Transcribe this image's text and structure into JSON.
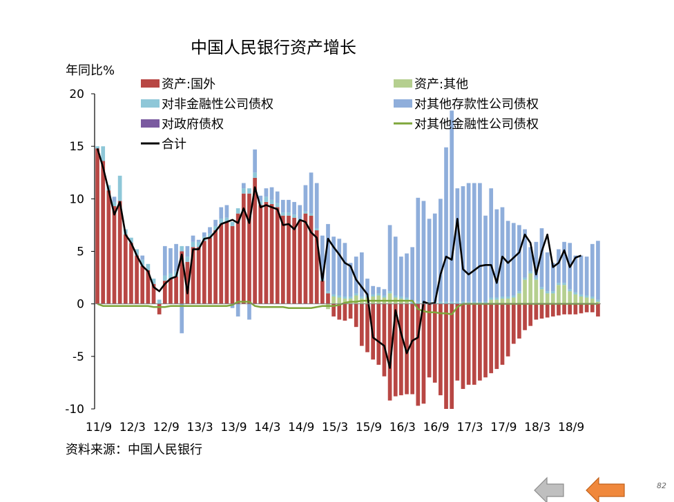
{
  "chart_data": {
    "type": "bar",
    "title": "中国人民银行资产增长",
    "ylabel": "年同比%",
    "source": "资料来源：中国人民银行",
    "ylim": [
      -10,
      20
    ],
    "yticks": [
      20,
      15,
      10,
      5,
      0,
      -5,
      -10
    ],
    "x_tick_labels": [
      "11/9",
      "12/3",
      "12/9",
      "13/3",
      "13/9",
      "14/3",
      "14/9",
      "15/3",
      "15/9",
      "16/3",
      "16/9",
      "17/3",
      "17/9",
      "18/3",
      "18/9"
    ],
    "legend": [
      {
        "label": "资产:国外",
        "kind": "bar",
        "color": "#b84744"
      },
      {
        "label": "资产:其他",
        "kind": "bar",
        "color": "#b5cf8f"
      },
      {
        "label": "对非金融性公司债权",
        "kind": "bar",
        "color": "#8ec7d8"
      },
      {
        "label": "对其他存款性公司债权",
        "kind": "bar",
        "color": "#8faedb"
      },
      {
        "label": "对政府债权",
        "kind": "bar",
        "color": "#7a5aa0"
      },
      {
        "label": "对其他金融性公司债权",
        "kind": "line",
        "color": "#7ea63a"
      },
      {
        "label": "合计",
        "kind": "line",
        "color": "#000000"
      }
    ],
    "series": {
      "foreign": [
        14.8,
        13.6,
        10.8,
        9.3,
        9.8,
        6.6,
        5.8,
        4.6,
        3.6,
        3.2,
        1.9,
        -1.0,
        2.2,
        2.4,
        2.6,
        5.0,
        4.0,
        5.4,
        5.4,
        6.0,
        6.3,
        7.0,
        7.6,
        7.8,
        7.4,
        8.6,
        10.5,
        10.5,
        12.0,
        9.4,
        9.7,
        9.5,
        9.2,
        8.4,
        8.4,
        8.2,
        7.9,
        8.6,
        8.4,
        7.0,
        2.2,
        1.0,
        -1.2,
        -1.5,
        -1.6,
        -1.4,
        -2.2,
        -4.0,
        -4.6,
        -5.3,
        -5.8,
        -6.9,
        -9.2,
        -8.8,
        -8.7,
        -8.6,
        -8.6,
        -9.7,
        -9.5,
        -7.0,
        -7.5,
        -8.7,
        -10.0,
        -10.0,
        -7.3,
        -8.1,
        -7.7,
        -7.7,
        -7.3,
        -7.0,
        -6.6,
        -6.2,
        -5.8,
        -5.0,
        -3.8,
        -3.3,
        -2.5,
        -2.1,
        -1.5,
        -1.4,
        -1.3,
        -1.2,
        -1.1,
        -1.0,
        -1.0,
        -1.0,
        -0.9,
        -0.8,
        -0.8,
        -1.2
      ],
      "other": [
        0,
        0,
        0,
        0,
        0,
        0,
        0,
        0,
        0,
        0,
        0,
        0,
        0,
        0,
        0,
        0,
        0,
        0,
        0,
        0,
        0,
        0,
        0,
        0,
        0,
        0,
        0,
        0,
        0,
        0,
        0,
        0,
        0,
        0,
        0,
        0,
        0,
        0,
        0,
        0,
        0,
        -0.5,
        0.7,
        0.6,
        0.5,
        0.5,
        0.8,
        0.5,
        0.6,
        0.7,
        0.8,
        0.6,
        1.0,
        0.6,
        0.5,
        0.4,
        0,
        0,
        0,
        0,
        0,
        0,
        0,
        0,
        0,
        0,
        0,
        0,
        0,
        0,
        0.4,
        0.4,
        0.5,
        0.5,
        0.6,
        1.0,
        2.3,
        2.9,
        2.3,
        1.4,
        1.0,
        1.0,
        1.8,
        1.8,
        1.2,
        0.9,
        0.7,
        0.6,
        0.5,
        0.2
      ],
      "nonfin": [
        0.2,
        1.4,
        0.5,
        0.4,
        2.4,
        0.5,
        0.5,
        0.6,
        0.6,
        0.6,
        0.5,
        0.4,
        0.5,
        0.5,
        0.5,
        0.5,
        0.5,
        0.5,
        0.5,
        0.4,
        0.4,
        0.4,
        0.5,
        0.4,
        0.4,
        0.5,
        0.5,
        0.5,
        0.5,
        0.4,
        0.5,
        0.4,
        0.4,
        0.3,
        0.3,
        0.3,
        0.2,
        0.2,
        0.2,
        0.2,
        0.2,
        0.2,
        0.2,
        0.2,
        0.2,
        0.2,
        0.2,
        0.2,
        0.2,
        0.2,
        0.2,
        0.2,
        0.2,
        0.2,
        0.2,
        0.2,
        0.2,
        0.2,
        0.2,
        0.2,
        0.2,
        0.2,
        0.2,
        0.2,
        0.2,
        0.2,
        0.2,
        0.2,
        0.2,
        0.2,
        0.2,
        0.2,
        0.2,
        0.2,
        0.2,
        0.2,
        0.2,
        0.2,
        0.2,
        0.2,
        0.2,
        0.2,
        0.2,
        0.2,
        0.2,
        0.2,
        0.2,
        0.2,
        0.2,
        0.2
      ],
      "banks": [
        0,
        0,
        0,
        0.5,
        0,
        0,
        0,
        0,
        0.4,
        0,
        0,
        0,
        2.8,
        2.4,
        2.6,
        -2.8,
        1.0,
        0.6,
        0.2,
        0.4,
        0.6,
        0.6,
        1.1,
        1.2,
        -0.4,
        -1.2,
        0.5,
        -1.5,
        2.2,
        0.5,
        0.8,
        1.2,
        1.1,
        1.2,
        1.2,
        1.2,
        1.3,
        2.5,
        3.9,
        4.3,
        4.1,
        6.4,
        5.5,
        5.4,
        5.1,
        3.2,
        3.5,
        4.2,
        1.6,
        0.8,
        0.6,
        0.6,
        6.3,
        5.6,
        3.8,
        4.2,
        5.2,
        9.9,
        9.6,
        7.9,
        8.4,
        9.8,
        14.7,
        18.2,
        10.8,
        11.0,
        11.3,
        11.3,
        11.3,
        8.2,
        10.4,
        8.4,
        8.5,
        7.2,
        6.9,
        6.3,
        4.6,
        2.3,
        3.4,
        5.6,
        3.7,
        2.7,
        3.2,
        3.9,
        4.4,
        3.5,
        3.7,
        3.7,
        5.0,
        5.6
      ],
      "gov": [
        0,
        0,
        0,
        0,
        0,
        0,
        0,
        0,
        0,
        0,
        0,
        0,
        0,
        0,
        0,
        0,
        0,
        0,
        0,
        0,
        0,
        0,
        0,
        0,
        0,
        0,
        0,
        0,
        0,
        0,
        0,
        0,
        0,
        0,
        0,
        0,
        0,
        0,
        0,
        0,
        0,
        0,
        0,
        0,
        0,
        0,
        0,
        0,
        0,
        0,
        0,
        0,
        0,
        0,
        0,
        0,
        0,
        0,
        0,
        0,
        0,
        0,
        0,
        0,
        0,
        0,
        0,
        0,
        0,
        0,
        0,
        0,
        0,
        0,
        0,
        0,
        0,
        0,
        0,
        0,
        0,
        0,
        0,
        0,
        0,
        0,
        0,
        0,
        0,
        0
      ],
      "otherfin": [
        0,
        -0.2,
        -0.2,
        -0.2,
        -0.2,
        -0.2,
        -0.2,
        -0.2,
        -0.2,
        -0.2,
        -0.3,
        -0.3,
        -0.3,
        -0.2,
        -0.2,
        -0.2,
        -0.2,
        -0.2,
        -0.2,
        -0.2,
        -0.2,
        -0.2,
        -0.2,
        -0.2,
        -0.1,
        0.2,
        0.2,
        0.2,
        -0.2,
        -0.3,
        -0.3,
        -0.3,
        -0.3,
        -0.3,
        -0.4,
        -0.4,
        -0.4,
        -0.4,
        -0.4,
        -0.3,
        -0.2,
        -0.2,
        -0.2,
        -0.1,
        0.1,
        0.2,
        0.2,
        0.3,
        0.3,
        0.3,
        0.3,
        0.3,
        0.3,
        0.3,
        0.3,
        0.3,
        0.3,
        -0.5,
        -0.7,
        -0.8,
        -0.8,
        -0.9,
        -0.9,
        -1.0,
        -0.3,
        0,
        0,
        0,
        0,
        0,
        0,
        0,
        0,
        0,
        0,
        0,
        0,
        0,
        0,
        0,
        0,
        0,
        0,
        0,
        0,
        0,
        0,
        0,
        0,
        0
      ],
      "total": [
        14.8,
        13.0,
        10.8,
        8.5,
        9.7,
        6.6,
        5.8,
        4.6,
        3.6,
        3.1,
        1.6,
        1.2,
        1.9,
        2.4,
        2.6,
        4.7,
        1.0,
        5.2,
        5.2,
        6.2,
        6.3,
        6.9,
        7.6,
        7.8,
        8.0,
        7.7,
        9.1,
        7.7,
        11.1,
        9.2,
        9.4,
        9.2,
        9.0,
        7.5,
        7.6,
        7.1,
        8.0,
        7.8,
        6.8,
        6.3,
        2.2,
        6.2,
        5.4,
        4.7,
        3.9,
        3.6,
        2.3,
        1.6,
        0.9,
        -3.2,
        -3.6,
        -4.0,
        -6.1,
        -0.6,
        -2.8,
        -4.7,
        -3.5,
        -3.2,
        0.2,
        0.0,
        0.1,
        2.8,
        4.5,
        4.2,
        8.1,
        3.3,
        2.8,
        3.2,
        3.6,
        3.7,
        3.7,
        2.0,
        4.5,
        3.9,
        4.4,
        4.9,
        6.6,
        5.8,
        2.8,
        5.0,
        6.6,
        3.5,
        3.9,
        5.1,
        3.5,
        4.4,
        4.6
      ]
    }
  },
  "nav": {
    "prev": "上一页",
    "next": "下一页"
  },
  "page_number": "82"
}
